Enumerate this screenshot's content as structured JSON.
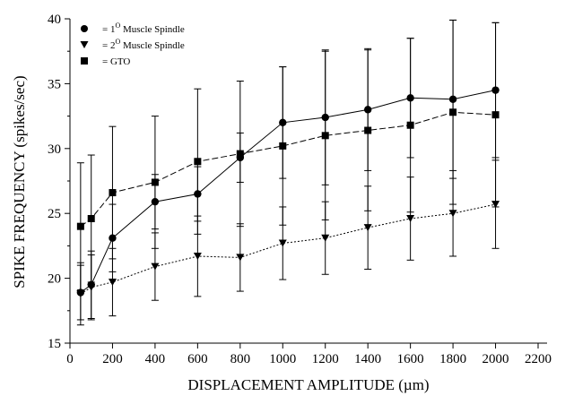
{
  "chart_data": {
    "type": "line",
    "title": "",
    "xlabel": "DISPLACEMENT AMPLITUDE (µm)",
    "ylabel": "SPIKE FREQUENCY (spikes/sec)",
    "xlim": [
      0,
      2200
    ],
    "ylim": [
      15,
      40
    ],
    "x_ticks": [
      "0",
      "200",
      "400",
      "600",
      "800",
      "1000",
      "1200",
      "1400",
      "1600",
      "1800",
      "2000",
      "2200"
    ],
    "y_ticks": [
      "15",
      "20",
      "25",
      "30",
      "35",
      "40"
    ],
    "grid": false,
    "legend_position": "top-left",
    "legend": {
      "primary": {
        "prefix": "= 1",
        "sup": "O",
        "suffix": " Muscle Spindle"
      },
      "secondary": {
        "prefix": "= 2",
        "sup": "O",
        "suffix": " Muscle Spindle"
      },
      "gto": {
        "prefix": "= GTO",
        "sup": "",
        "suffix": ""
      }
    },
    "series": [
      {
        "key": "primary",
        "marker": "circle",
        "dash": "",
        "x": [
          50,
          100,
          200,
          400,
          600,
          800,
          1000,
          1200,
          1400,
          1600,
          1800,
          2000
        ],
        "y": [
          18.9,
          19.5,
          23.1,
          25.9,
          26.5,
          29.3,
          32.0,
          32.4,
          33.0,
          33.9,
          33.8,
          34.5
        ],
        "err": [
          2.1,
          2.6,
          2.6,
          2.1,
          2.1,
          1.9,
          4.3,
          5.2,
          4.7,
          4.6,
          6.1,
          5.2
        ]
      },
      {
        "key": "secondary",
        "marker": "triangle-down",
        "dash": "2,2",
        "x": [
          50,
          100,
          200,
          400,
          600,
          800,
          1000,
          1200,
          1400,
          1600,
          1800,
          2000
        ],
        "y": [
          18.8,
          19.3,
          19.7,
          20.9,
          21.7,
          21.6,
          22.7,
          23.1,
          23.9,
          24.6,
          25.0,
          25.7
        ],
        "err": [
          2.4,
          2.5,
          2.6,
          2.6,
          3.1,
          2.6,
          2.8,
          2.8,
          3.2,
          3.2,
          3.3,
          3.4
        ]
      },
      {
        "key": "gto",
        "marker": "square",
        "dash": "7,3",
        "x": [
          50,
          100,
          200,
          400,
          600,
          800,
          1000,
          1200,
          1400,
          1600,
          1800,
          2000
        ],
        "y": [
          24.0,
          24.6,
          26.6,
          27.4,
          29.0,
          29.6,
          30.2,
          31.0,
          31.4,
          31.8,
          32.8,
          32.6
        ],
        "err": [
          4.9,
          4.9,
          5.1,
          5.1,
          5.6,
          5.6,
          6.1,
          6.5,
          6.2,
          6.7,
          7.1,
          7.1
        ]
      }
    ]
  }
}
